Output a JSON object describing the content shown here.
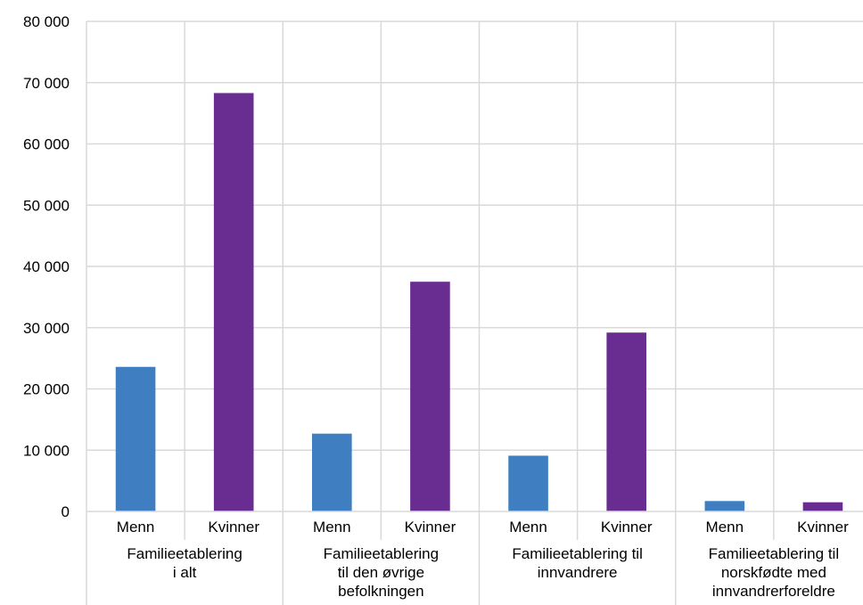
{
  "chart_data": {
    "type": "bar",
    "groups": [
      {
        "label_lines": [
          "Familieetablering",
          "i alt"
        ],
        "bars": [
          {
            "label": "Menn",
            "value": 23600,
            "color": "#3E7EC1"
          },
          {
            "label": "Kvinner",
            "value": 68300,
            "color": "#692D91"
          }
        ]
      },
      {
        "label_lines": [
          "Familieetablering",
          "til den øvrige",
          "befolkningen"
        ],
        "bars": [
          {
            "label": "Menn",
            "value": 12700,
            "color": "#3E7EC1"
          },
          {
            "label": "Kvinner",
            "value": 37500,
            "color": "#692D91"
          }
        ]
      },
      {
        "label_lines": [
          "Familieetablering til",
          "innvandrere"
        ],
        "bars": [
          {
            "label": "Menn",
            "value": 9100,
            "color": "#3E7EC1"
          },
          {
            "label": "Kvinner",
            "value": 29200,
            "color": "#692D91"
          }
        ]
      },
      {
        "label_lines": [
          "Familieetablering til",
          "norskfødte med",
          "innvandrerforeldre"
        ],
        "bars": [
          {
            "label": "Menn",
            "value": 1700,
            "color": "#3E7EC1"
          },
          {
            "label": "Kvinner",
            "value": 1500,
            "color": "#692D91"
          }
        ]
      }
    ],
    "y_ticks": [
      "0",
      "10 000",
      "20 000",
      "30 000",
      "40 000",
      "50 000",
      "60 000",
      "70 000",
      "80 000"
    ],
    "ylim": [
      0,
      80000
    ],
    "grid": true,
    "title": "",
    "xlabel": "",
    "ylabel": ""
  }
}
